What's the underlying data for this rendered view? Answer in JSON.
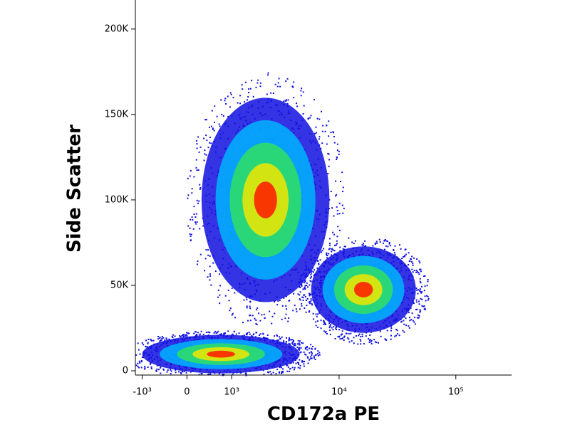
{
  "chart_data": {
    "type": "density",
    "x_label": "CD172a PE",
    "y_label": "Side Scatter",
    "x_scale": "biexponential",
    "xlim": [
      -1200,
      300000
    ],
    "xticks": [
      {
        "value": -1000,
        "label": "-10³"
      },
      0,
      {
        "value": 1000,
        "label": "10³"
      },
      {
        "value": 10000,
        "label": "10⁴"
      },
      {
        "value": 100000,
        "label": "10⁵"
      }
    ],
    "ylim": [
      -2500,
      217000
    ],
    "yticks": [
      0,
      {
        "value": 50000,
        "label": "50K"
      },
      {
        "value": 100000,
        "label": "100K"
      },
      {
        "value": 150000,
        "label": "150K"
      },
      {
        "value": 200000,
        "label": "200K"
      }
    ],
    "density_colors": [
      "#1010e0",
      "#00b4ff",
      "#30e060",
      "#f0e800",
      "#ff1800"
    ],
    "clusters": [
      {
        "x_range": [
          -1200,
          5230
        ],
        "y_range": [
          -2500,
          22000
        ]
      },
      {
        "x_range": [
          179,
          9230
        ],
        "y_range": [
          35000,
          165000
        ]
      },
      {
        "x_range": [
          5230,
          49800
        ],
        "y_range": [
          20000,
          75000
        ]
      }
    ]
  }
}
